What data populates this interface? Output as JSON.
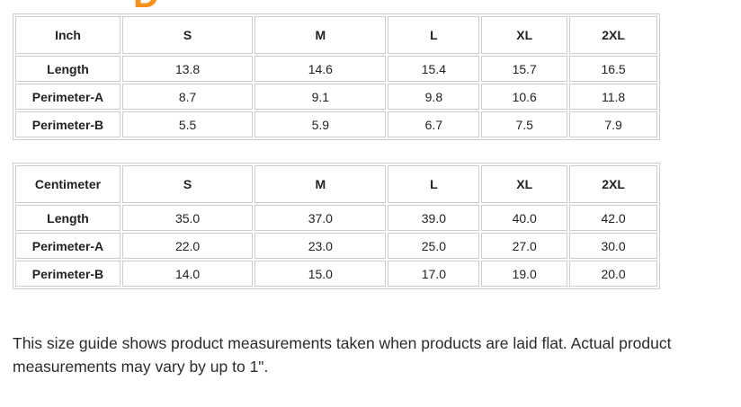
{
  "heading_fragment": {
    "letter": "D",
    "color": "#F6921E"
  },
  "tables": [
    {
      "unit_label": "Inch",
      "size_headers": [
        "S",
        "M",
        "L",
        "XL",
        "2XL"
      ],
      "rows": [
        {
          "label": "Length",
          "values": [
            "13.8",
            "14.6",
            "15.4",
            "15.7",
            "16.5"
          ]
        },
        {
          "label": "Perimeter-A",
          "values": [
            "8.7",
            "9.1",
            "9.8",
            "10.6",
            "11.8"
          ]
        },
        {
          "label": "Perimeter-B",
          "values": [
            "5.5",
            "5.9",
            "6.7",
            "7.5",
            "7.9"
          ]
        }
      ]
    },
    {
      "unit_label": "Centimeter",
      "size_headers": [
        "S",
        "M",
        "L",
        "XL",
        "2XL"
      ],
      "rows": [
        {
          "label": "Length",
          "values": [
            "35.0",
            "37.0",
            "39.0",
            "40.0",
            "42.0"
          ]
        },
        {
          "label": "Perimeter-A",
          "values": [
            "22.0",
            "23.0",
            "25.0",
            "27.0",
            "30.0"
          ]
        },
        {
          "label": "Perimeter-B",
          "values": [
            "14.0",
            "15.0",
            "17.0",
            "19.0",
            "20.0"
          ]
        }
      ]
    }
  ],
  "footnote_text": "This size guide shows product measurements taken when products are laid flat. Actual product measurements may vary by up to 1\"."
}
